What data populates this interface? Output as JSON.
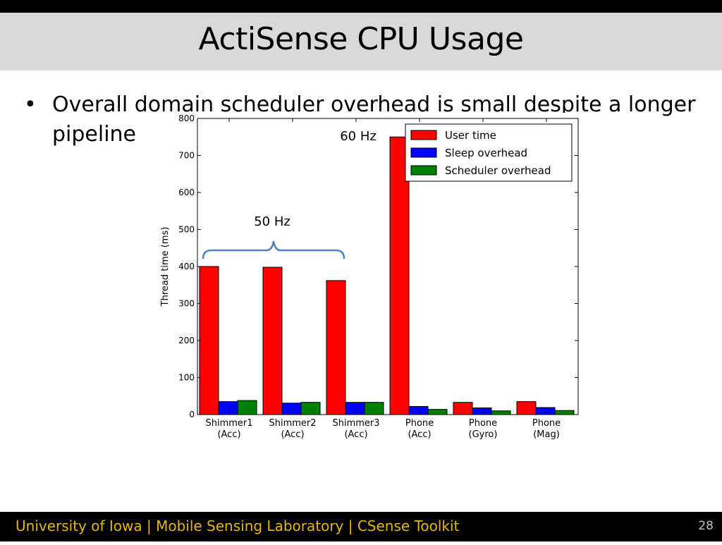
{
  "slide": {
    "title": "ActiSense CPU Usage",
    "bullet_symbol": "•",
    "bullet_text": "Overall domain scheduler overhead is small despite a longer pipeline",
    "footer": "University of Iowa | Mobile Sensing Laboratory | CSense Toolkit",
    "page_number": "28"
  },
  "colors": {
    "user_time": "#ff0000",
    "sleep_overhead": "#0000ff",
    "scheduler_overhead": "#008000",
    "brace": "#4f81bd",
    "footer_text": "#e6b800"
  },
  "chart_data": {
    "type": "bar",
    "title": "",
    "xlabel": "",
    "ylabel": "Thread time (ms)",
    "ylim": [
      0,
      800
    ],
    "yticks": [
      0,
      100,
      200,
      300,
      400,
      500,
      600,
      700,
      800
    ],
    "grid": false,
    "legend_position": "top-right",
    "categories": [
      [
        "Shimmer1",
        "(Acc)"
      ],
      [
        "Shimmer2",
        "(Acc)"
      ],
      [
        "Shimmer3",
        "(Acc)"
      ],
      [
        "Phone",
        "(Acc)"
      ],
      [
        "Phone",
        "(Gyro)"
      ],
      [
        "Phone",
        "(Mag)"
      ]
    ],
    "series": [
      {
        "name": "User time",
        "values": [
          400,
          398,
          362,
          750,
          33,
          35
        ]
      },
      {
        "name": "Sleep overhead",
        "values": [
          35,
          31,
          33,
          22,
          18,
          19
        ]
      },
      {
        "name": "Scheduler overhead",
        "values": [
          38,
          33,
          33,
          14,
          10,
          11
        ]
      }
    ],
    "annotations": [
      {
        "text": "60 Hz",
        "category_index": 3
      },
      {
        "text": "50 Hz",
        "category_range": [
          0,
          2
        ]
      }
    ]
  }
}
